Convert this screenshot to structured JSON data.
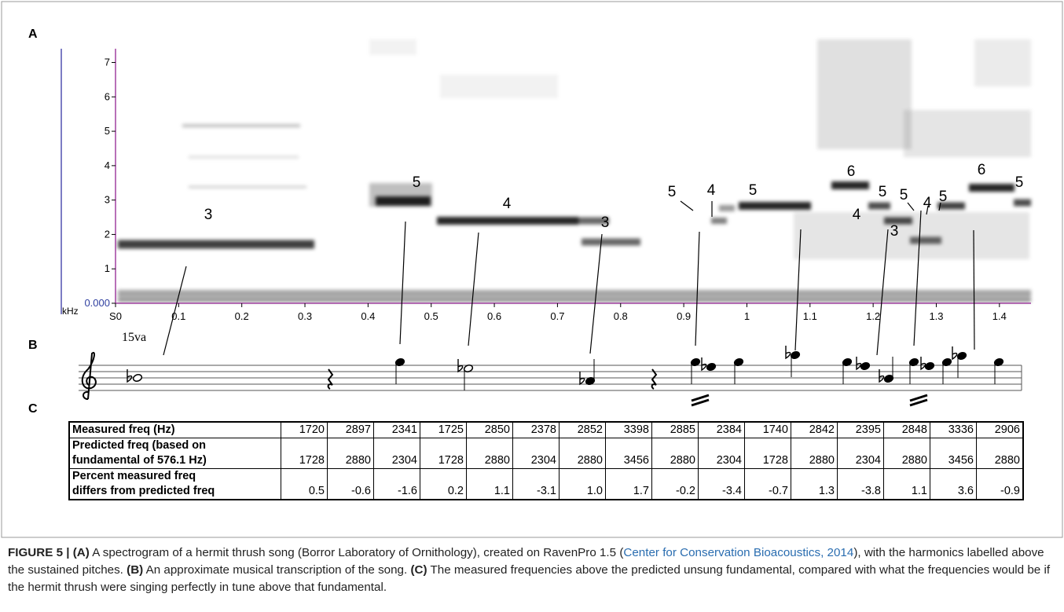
{
  "panels": {
    "a": "A",
    "b": "B",
    "c": "C"
  },
  "spectrogram": {
    "type": "spectrogram",
    "y_unit": "kHz",
    "ylim": [
      0,
      7.4
    ],
    "yticks": [
      {
        "value": 0,
        "label": "0.000"
      },
      1,
      2,
      3,
      4,
      5,
      6,
      7
    ],
    "xlim": [
      0,
      1.45
    ],
    "xticks": [
      {
        "value": 0,
        "label": "S0"
      },
      0.1,
      0.2,
      0.3,
      0.4,
      0.5,
      0.6,
      0.7,
      0.8,
      0.9,
      1,
      1.1,
      1.2,
      1.3,
      1.4
    ],
    "harmonic_labels": [
      "3",
      "5",
      "4",
      "3",
      "5",
      "4",
      "5",
      "6",
      "5",
      "4",
      "3",
      "5",
      "4",
      "5",
      "6",
      "5"
    ]
  },
  "notation": {
    "ottava": "15va"
  },
  "table": {
    "rows": [
      {
        "label": [
          "Measured freq (Hz)"
        ],
        "cells": [
          "1720",
          "2897",
          "2341",
          "1725",
          "2850",
          "2378",
          "2852",
          "3398",
          "2885",
          "2384",
          "1740",
          "2842",
          "2395",
          "2848",
          "3336",
          "2906"
        ]
      },
      {
        "label": [
          "Predicted freq (based on",
          "fundamental of 576.1 Hz)"
        ],
        "cells": [
          "1728",
          "2880",
          "2304",
          "1728",
          "2880",
          "2304",
          "2880",
          "3456",
          "2880",
          "2304",
          "1728",
          "2880",
          "2304",
          "2880",
          "3456",
          "2880"
        ]
      },
      {
        "label": [
          "Percent measured freq",
          "differs from predicted freq"
        ],
        "cells": [
          "0.5",
          "-0.6",
          "-1.6",
          "0.2",
          "1.1",
          "-3.1",
          "1.0",
          "1.7",
          "-0.2",
          "-3.4",
          "-0.7",
          "1.3",
          "-3.8",
          "1.1",
          "3.6",
          "-0.9"
        ]
      }
    ]
  },
  "caption": [
    {
      "text": "FIGURE 5 | ",
      "style": "bold"
    },
    {
      "text": "(A)",
      "style": "bold"
    },
    {
      "text": " A spectrogram of a hermit thrush song (Borror Laboratory of Ornithology), created on RavenPro 1.5 (",
      "style": "plain"
    },
    {
      "text": "Center for Conservation Bioacoustics, 2014",
      "style": "link"
    },
    {
      "text": "), with the harmonics labelled above the sustained pitches. ",
      "style": "plain"
    },
    {
      "text": "(B)",
      "style": "bold"
    },
    {
      "text": " An approximate musical transcription of the song. ",
      "style": "plain"
    },
    {
      "text": "(C)",
      "style": "bold"
    },
    {
      "text": " The measured frequencies above the predicted unsung fundamental, compared with what the frequencies would be if the hermit thrush were singing perfectly in tune above that fundamental.",
      "style": "plain"
    }
  ]
}
